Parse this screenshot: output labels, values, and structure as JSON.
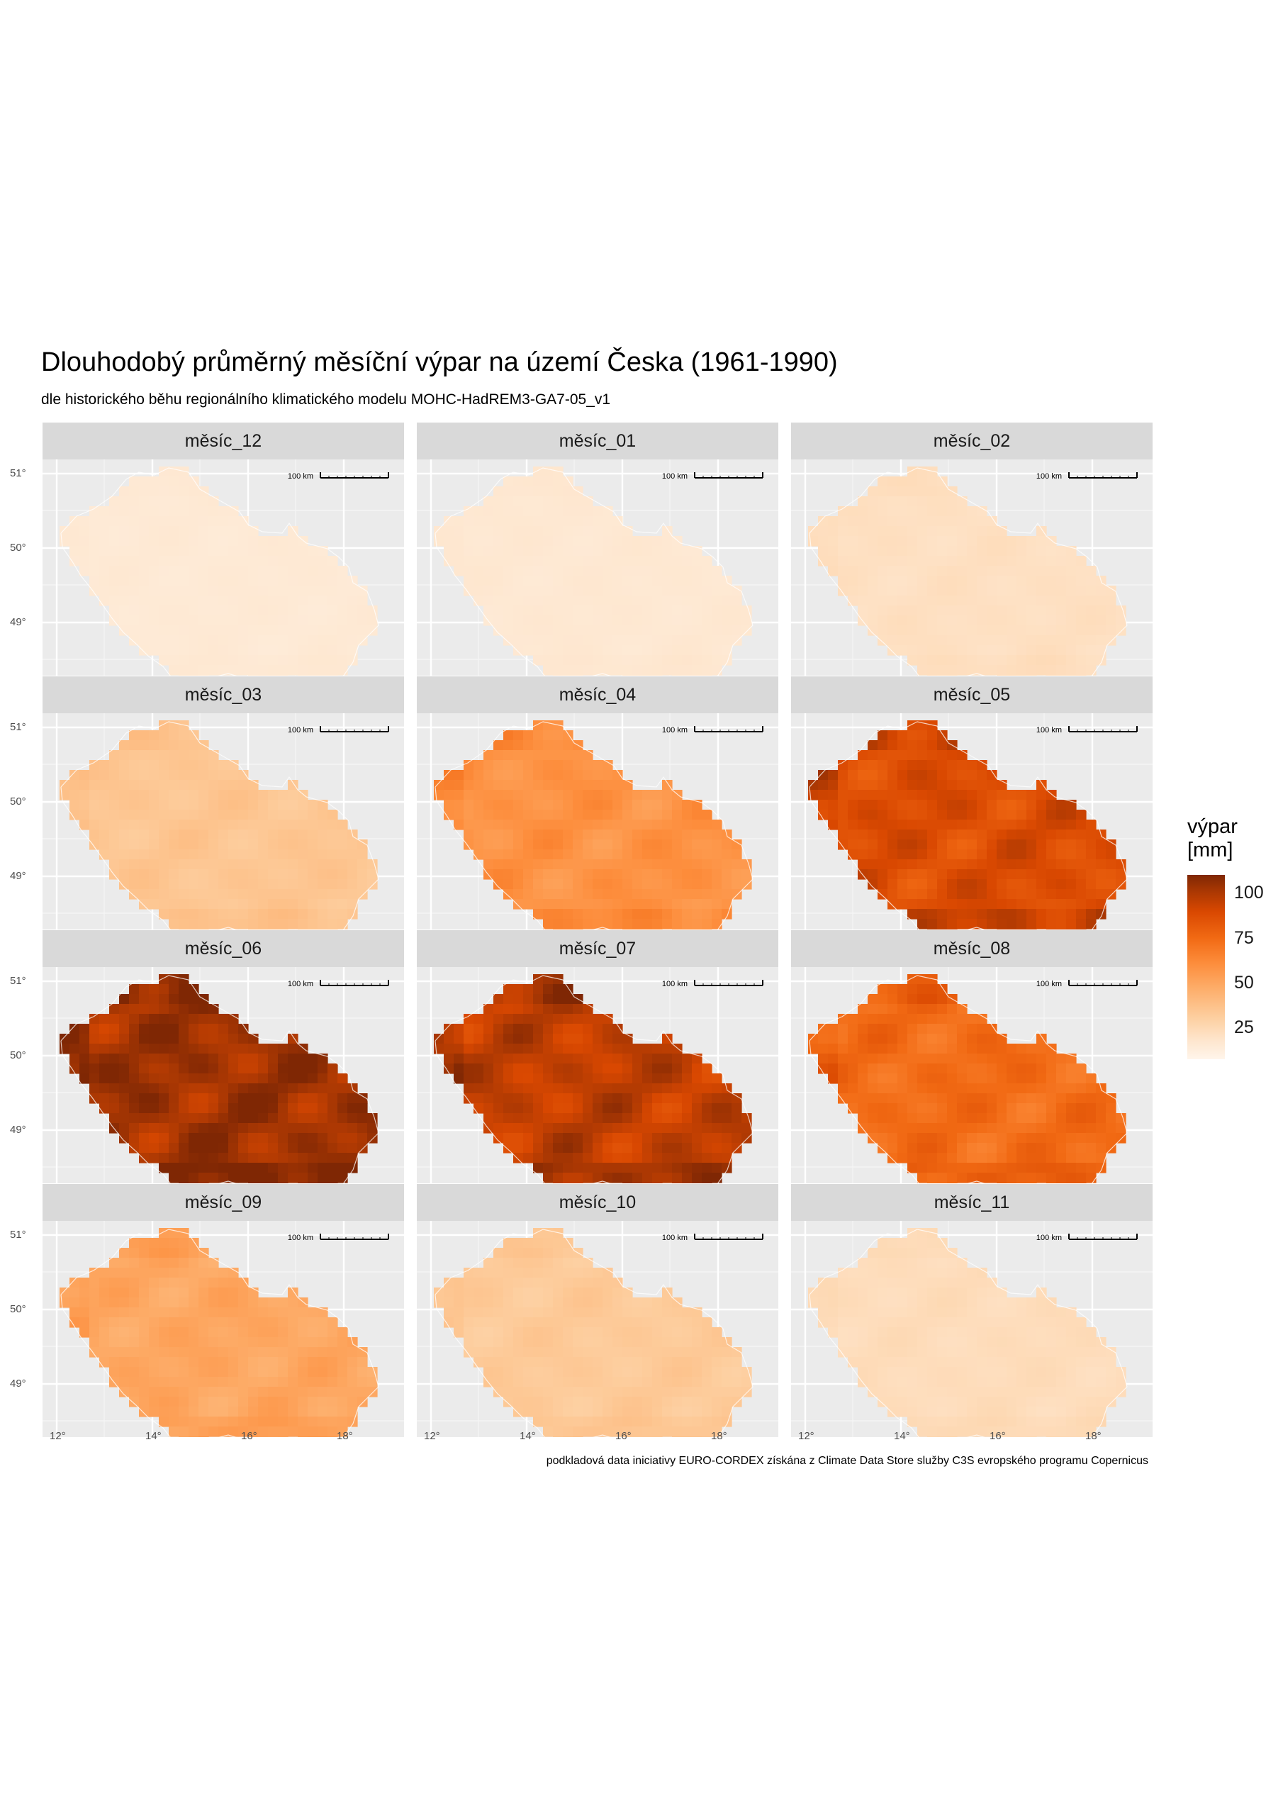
{
  "title": "Dlouhodobý průměrný měsíční výpar na území Česka (1961-1990)",
  "subtitle": "dle historického běhu regionálního klimatického modelu MOHC-HadREM3-GA7-05_v1",
  "caption": "podkladová data iniciativy EURO-CORDEX získána z Climate Data Store služby C3S evropského programu Copernicus",
  "scale_bar_label": "100 km",
  "y_axis_ticks": [
    "51°",
    "50°",
    "49°"
  ],
  "x_axis_ticks": [
    "12°",
    "14°",
    "16°",
    "18°"
  ],
  "legend": {
    "title_line1": "výpar",
    "title_line2": "[mm]",
    "labels": [
      "100",
      "75",
      "50",
      "25"
    ]
  },
  "map_data": {
    "type": "faceted raster map",
    "value_range": [
      0,
      105
    ],
    "panels": [
      {
        "label": "měsíc_12",
        "mean_value": 8
      },
      {
        "label": "měsíc_01",
        "mean_value": 9
      },
      {
        "label": "měsíc_02",
        "mean_value": 14
      },
      {
        "label": "měsíc_03",
        "mean_value": 28
      },
      {
        "label": "měsíc_04",
        "mean_value": 52
      },
      {
        "label": "měsíc_05",
        "mean_value": 82
      },
      {
        "label": "měsíc_06",
        "mean_value": 98
      },
      {
        "label": "měsíc_07",
        "mean_value": 90
      },
      {
        "label": "měsíc_08",
        "mean_value": 68
      },
      {
        "label": "měsíc_09",
        "mean_value": 43
      },
      {
        "label": "měsíc_10",
        "mean_value": 26
      },
      {
        "label": "měsíc_11",
        "mean_value": 16
      }
    ]
  },
  "colors": {
    "panel_bg": "#ebebeb",
    "strip_bg": "#d9d9d9",
    "grid": "#ffffff",
    "low": "#fff5eb",
    "high": "#7f2704"
  }
}
